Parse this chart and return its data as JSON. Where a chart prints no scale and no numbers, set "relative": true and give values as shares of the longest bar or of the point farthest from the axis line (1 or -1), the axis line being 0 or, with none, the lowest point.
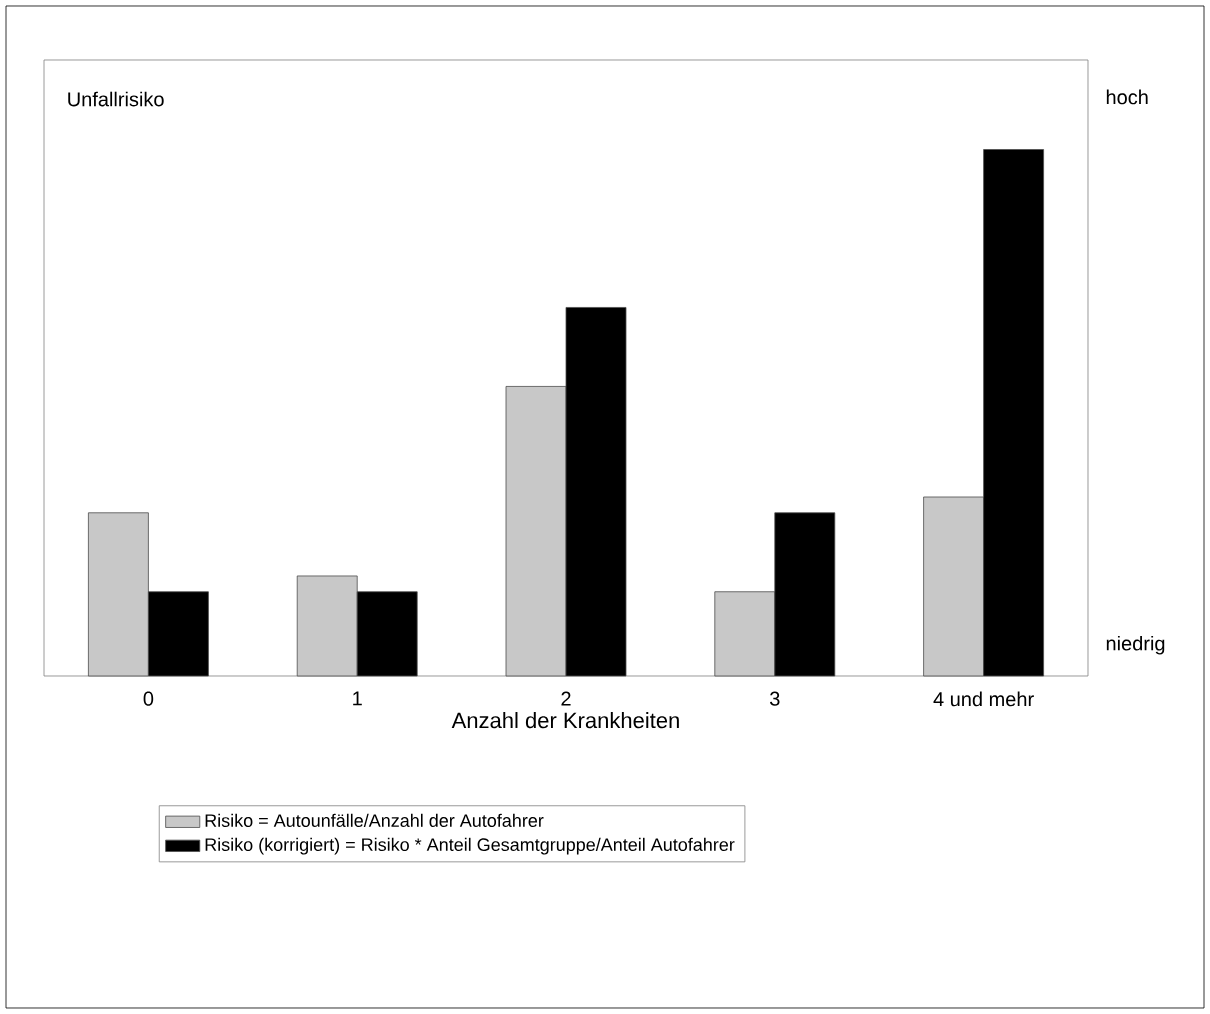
{
  "chart_data": {
    "type": "bar",
    "relative": true,
    "ylabel": "Unfallrisiko",
    "xlabel": "Anzahl der Krankheiten",
    "categories": [
      "0",
      "1",
      "2",
      "3",
      "4 und mehr"
    ],
    "series": [
      {
        "name": "Risiko = Autounfälle/Anzahl der Autofahrer",
        "color": "#c8c8c8",
        "values": [
          0.31,
          0.19,
          0.55,
          0.16,
          0.34
        ]
      },
      {
        "name": "Risiko (korrigiert) = Risiko * Anteil Gesamtgruppe/Anteil Autofahrer",
        "color": "#000000",
        "values": [
          0.16,
          0.16,
          0.7,
          0.31,
          1.0
        ]
      }
    ],
    "annotations": [
      "hoch",
      "niedrig"
    ],
    "legend": "bottom"
  }
}
